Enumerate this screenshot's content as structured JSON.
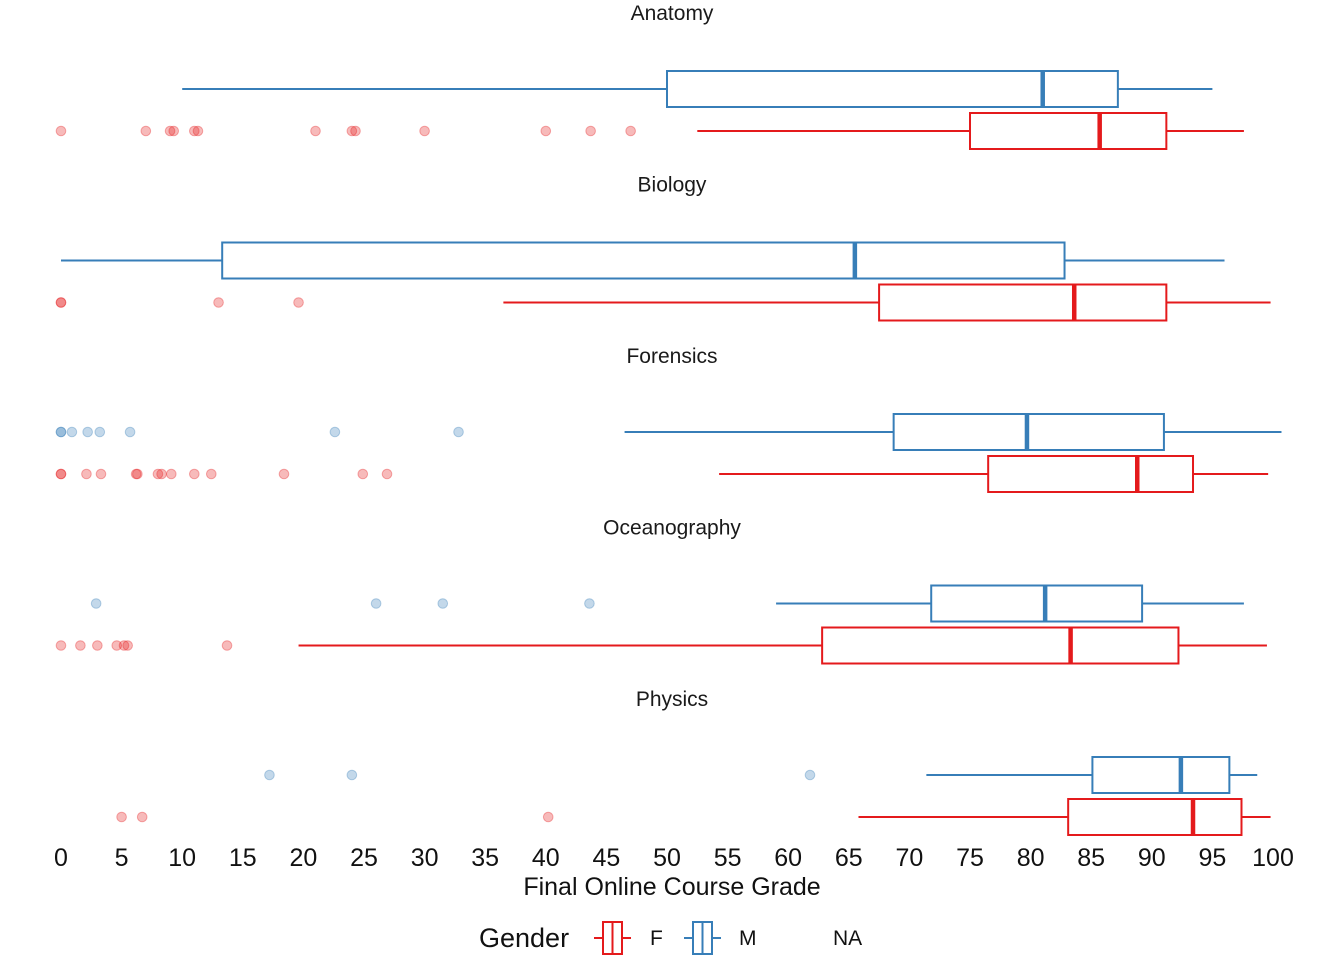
{
  "chart_data": {
    "type": "boxplot",
    "orientation": "horizontal",
    "xlabel": "Final Online Course Grade",
    "xlim": [
      0,
      100
    ],
    "xticks": [
      0,
      5,
      10,
      15,
      20,
      25,
      30,
      35,
      40,
      45,
      50,
      55,
      60,
      65,
      70,
      75,
      80,
      85,
      90,
      95,
      100
    ],
    "grid": false,
    "legend": {
      "title": "Gender",
      "placement": "bottom",
      "entries": [
        {
          "label": "F",
          "color": "#e41a1c"
        },
        {
          "label": "M",
          "color": "#377eb8"
        },
        {
          "label": "NA",
          "color": "#999999"
        }
      ]
    },
    "facets": [
      {
        "title": "Anatomy",
        "boxes": [
          {
            "group": "M",
            "whisker_low": 10,
            "q1": 50,
            "median": 81,
            "q3": 87.2,
            "whisker_high": 95,
            "outliers": []
          },
          {
            "group": "F",
            "whisker_low": 52.5,
            "q1": 75,
            "median": 85.7,
            "q3": 91.2,
            "whisker_high": 97.6,
            "outliers": [
              0,
              7,
              9,
              9.3,
              11,
              11.3,
              21,
              24,
              24.3,
              30,
              40,
              43.7,
              47
            ]
          }
        ]
      },
      {
        "title": "Biology",
        "boxes": [
          {
            "group": "M",
            "whisker_low": 0,
            "q1": 13.3,
            "median": 65.5,
            "q3": 82.8,
            "whisker_high": 96,
            "outliers": []
          },
          {
            "group": "F",
            "whisker_low": 36.5,
            "q1": 67.5,
            "median": 83.6,
            "q3": 91.2,
            "whisker_high": 99.8,
            "outliers": [
              0,
              0,
              13,
              19.6
            ]
          }
        ]
      },
      {
        "title": "Forensics",
        "boxes": [
          {
            "group": "M",
            "whisker_low": 46.5,
            "q1": 68.7,
            "median": 79.7,
            "q3": 91,
            "whisker_high": 100.7,
            "outliers": [
              0,
              0,
              0.9,
              2.2,
              3.2,
              5.7,
              22.6,
              32.8
            ]
          },
          {
            "group": "F",
            "whisker_low": 54.3,
            "q1": 76.5,
            "median": 88.8,
            "q3": 93.4,
            "whisker_high": 99.6,
            "outliers": [
              0,
              0,
              2.1,
              3.3,
              6.2,
              6.3,
              8.0,
              8.3,
              9.1,
              11,
              12.4,
              18.4,
              24.9,
              26.9
            ]
          }
        ]
      },
      {
        "title": "Oceanography",
        "boxes": [
          {
            "group": "M",
            "whisker_low": 59,
            "q1": 71.8,
            "median": 81.2,
            "q3": 89.2,
            "whisker_high": 97.6,
            "outliers": [
              2.9,
              26,
              31.5,
              43.6
            ]
          },
          {
            "group": "F",
            "whisker_low": 19.6,
            "q1": 62.8,
            "median": 83.3,
            "q3": 92.2,
            "whisker_high": 99.5,
            "outliers": [
              0,
              1.6,
              3.0,
              4.6,
              5.2,
              5.5,
              13.7
            ]
          }
        ]
      },
      {
        "title": "Physics",
        "boxes": [
          {
            "group": "M",
            "whisker_low": 71.4,
            "q1": 85.1,
            "median": 92.4,
            "q3": 96.4,
            "whisker_high": 98.7,
            "outliers": [
              17.2,
              24,
              61.8
            ]
          },
          {
            "group": "F",
            "whisker_low": 65.8,
            "q1": 83.1,
            "median": 93.4,
            "q3": 97.4,
            "whisker_high": 99.8,
            "outliers": [
              5,
              6.7,
              40.2
            ]
          }
        ]
      }
    ]
  }
}
